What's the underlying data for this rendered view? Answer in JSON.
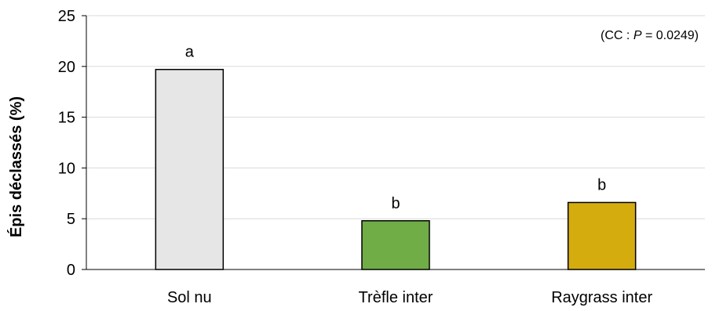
{
  "chart_data": {
    "type": "bar",
    "categories": [
      "Sol nu",
      "Trèfle inter",
      "Raygrass inter"
    ],
    "values": [
      19.7,
      4.8,
      6.6
    ],
    "significance_letters": [
      "a",
      "b",
      "b"
    ],
    "bar_colors": [
      "#e6e6e6",
      "#70ad47",
      "#d4ac0d"
    ],
    "bar_outline_color": "#000000",
    "ylabel": "Épis déclassés (%)",
    "xlabel": "",
    "ylim": [
      0,
      25
    ],
    "yticks": [
      0,
      5,
      10,
      15,
      20,
      25
    ],
    "grid": true,
    "grid_color": "#d9d9d9",
    "annotation": {
      "prefix": "(CC : ",
      "italic": "P",
      "suffix": " = 0.0249)"
    }
  }
}
